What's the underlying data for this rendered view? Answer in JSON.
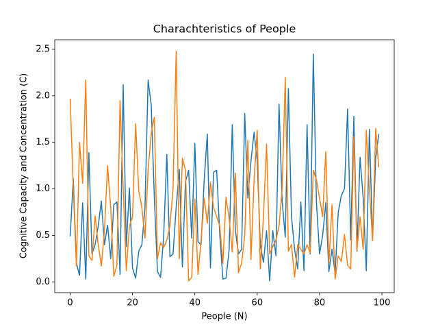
{
  "chart_data": {
    "type": "line",
    "title": "Charachteristics of People",
    "xlabel": "People (N)",
    "ylabel": "Cognitive Capacity and Concentration (C)",
    "x": [
      0,
      1,
      2,
      3,
      4,
      5,
      6,
      7,
      8,
      9,
      10,
      11,
      12,
      13,
      14,
      15,
      16,
      17,
      18,
      19,
      20,
      21,
      22,
      23,
      24,
      25,
      26,
      27,
      28,
      29,
      30,
      31,
      32,
      33,
      34,
      35,
      36,
      37,
      38,
      39,
      40,
      41,
      42,
      43,
      44,
      45,
      46,
      47,
      48,
      49,
      50,
      51,
      52,
      53,
      54,
      55,
      56,
      57,
      58,
      59,
      60,
      61,
      62,
      63,
      64,
      65,
      66,
      67,
      68,
      69,
      70,
      71,
      72,
      73,
      74,
      75,
      76,
      77,
      78,
      79,
      80,
      81,
      82,
      83,
      84,
      85,
      86,
      87,
      88,
      89,
      90,
      91,
      92,
      93,
      94,
      95,
      96,
      97,
      98,
      99
    ],
    "series": [
      {
        "color": "#1f77b4",
        "values": [
          0.49,
          1.11,
          0.2,
          0.07,
          0.85,
          0.03,
          1.39,
          0.3,
          0.4,
          0.6,
          0.87,
          0.4,
          0.61,
          0.25,
          0.83,
          0.86,
          0.08,
          2.12,
          0.38,
          1.01,
          0.15,
          0.04,
          0.33,
          0.4,
          0.8,
          2.17,
          1.9,
          0.9,
          0.11,
          0.05,
          0.5,
          1.37,
          0.27,
          0.3,
          0.8,
          1.21,
          0.16,
          1.08,
          1.2,
          0.47,
          1.49,
          0.43,
          0.4,
          1.1,
          1.59,
          0.15,
          1.18,
          1.2,
          0.5,
          0.03,
          0.04,
          0.35,
          1.69,
          0.55,
          0.3,
          0.35,
          1.81,
          0.9,
          1.3,
          1.61,
          1.3,
          0.4,
          0.21,
          0.55,
          0.01,
          0.55,
          0.28,
          1.91,
          0.87,
          0.48,
          2.08,
          0.7,
          0.35,
          0.14,
          0.86,
          0.12,
          1.69,
          0.3,
          2.45,
          0.86,
          0.3,
          0.5,
          0.85,
          0.11,
          0.35,
          0.09,
          0.75,
          0.93,
          1.0,
          1.86,
          0.45,
          1.78,
          0.33,
          1.34,
          0.9,
          0.12,
          1.64,
          0.45,
          1.33,
          1.59
        ]
      },
      {
        "color": "#ff7f0e",
        "values": [
          1.97,
          1.0,
          0.17,
          1.5,
          1.06,
          2.17,
          0.28,
          0.23,
          0.71,
          0.4,
          0.17,
          0.55,
          1.25,
          0.8,
          0.06,
          0.18,
          1.95,
          1.0,
          0.12,
          0.6,
          0.7,
          1.7,
          0.98,
          0.8,
          0.47,
          1.2,
          1.6,
          1.77,
          0.25,
          0.42,
          0.37,
          0.45,
          0.6,
          1.0,
          2.48,
          0.25,
          1.33,
          1.2,
          0.01,
          0.05,
          0.89,
          0.08,
          0.45,
          0.9,
          0.63,
          1.07,
          0.8,
          0.7,
          0.6,
          0.2,
          0.91,
          0.68,
          0.32,
          1.17,
          0.1,
          0.2,
          0.5,
          1.52,
          0.24,
          1.1,
          1.63,
          0.14,
          0.7,
          1.48,
          0.3,
          0.38,
          0.45,
          0.6,
          1.0,
          2.2,
          0.33,
          0.4,
          0.05,
          0.4,
          0.35,
          0.3,
          0.4,
          0.31,
          1.2,
          1.1,
          0.9,
          0.7,
          1.4,
          0.2,
          0.83,
          0.03,
          0.28,
          0.22,
          0.51,
          0.18,
          0.14,
          1.56,
          0.34,
          0.7,
          0.35,
          1.63,
          1.0,
          0.44,
          1.65,
          1.23
        ]
      }
    ],
    "xlim": [
      -4.95,
      103.95
    ],
    "xticks": [
      0,
      20,
      40,
      60,
      80,
      100
    ],
    "ylim": [
      -0.116,
      2.603
    ],
    "yticks": [
      {
        "value": 0,
        "label": "0.0"
      },
      0.5,
      {
        "value": 1,
        "label": "1.0"
      },
      1.5,
      {
        "value": 2,
        "label": "2.0"
      },
      2.5
    ]
  }
}
